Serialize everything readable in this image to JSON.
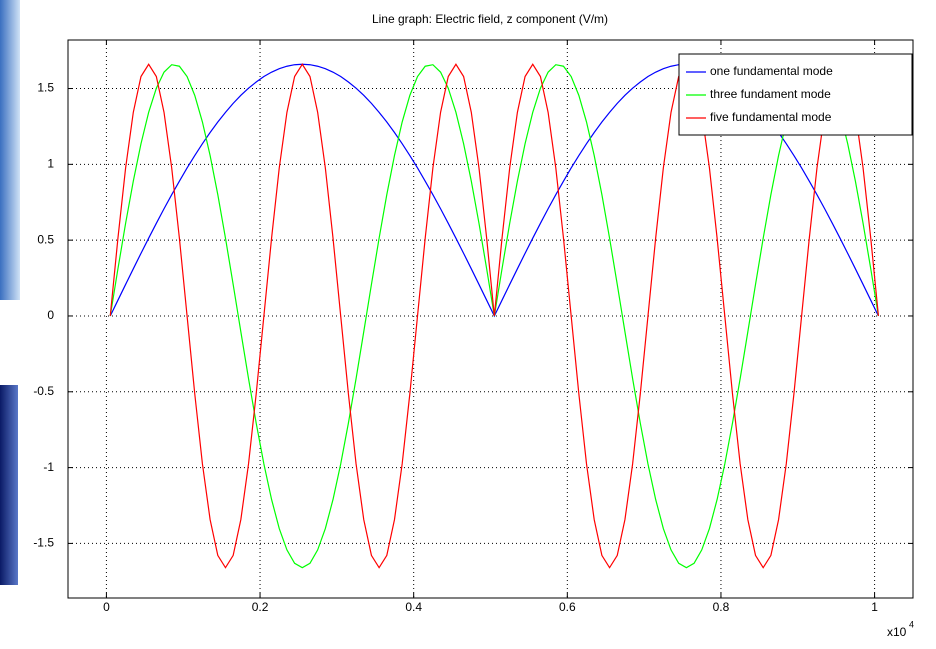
{
  "chart_data": {
    "type": "line",
    "title": "Line graph: Electric field, z component (V/m)",
    "x_multiplier": {
      "base": "x10",
      "exponent": "4"
    },
    "x": [
      0.005,
      0.015,
      0.025,
      0.035,
      0.045,
      0.055,
      0.065,
      0.075,
      0.085,
      0.095,
      0.105,
      0.115,
      0.125,
      0.135,
      0.145,
      0.155,
      0.165,
      0.175,
      0.185,
      0.195,
      0.205,
      0.215,
      0.225,
      0.235,
      0.245,
      0.255,
      0.265,
      0.275,
      0.285,
      0.295,
      0.305,
      0.315,
      0.325,
      0.335,
      0.345,
      0.355,
      0.365,
      0.375,
      0.385,
      0.395,
      0.405,
      0.415,
      0.425,
      0.435,
      0.445,
      0.455,
      0.465,
      0.475,
      0.485,
      0.495,
      0.505,
      0.515,
      0.525,
      0.535,
      0.545,
      0.555,
      0.565,
      0.575,
      0.585,
      0.595,
      0.605,
      0.615,
      0.625,
      0.635,
      0.645,
      0.655,
      0.665,
      0.675,
      0.685,
      0.695,
      0.705,
      0.715,
      0.725,
      0.735,
      0.745,
      0.755,
      0.765,
      0.775,
      0.785,
      0.795,
      0.805,
      0.815,
      0.825,
      0.835,
      0.845,
      0.855,
      0.865,
      0.875,
      0.885,
      0.895,
      0.905,
      0.915,
      0.925,
      0.935,
      0.945,
      0.955,
      0.965,
      0.975,
      0.985,
      0.995,
      1.005
    ],
    "series": [
      {
        "name": "one fundamental mode",
        "color": "#0000ff",
        "values": [
          0,
          0.104,
          0.208,
          0.311,
          0.413,
          0.513,
          0.611,
          0.707,
          0.8,
          0.889,
          0.976,
          1.058,
          1.136,
          1.21,
          1.279,
          1.343,
          1.402,
          1.455,
          1.502,
          1.543,
          1.579,
          1.608,
          1.631,
          1.647,
          1.657,
          1.66,
          1.657,
          1.647,
          1.631,
          1.608,
          1.579,
          1.543,
          1.502,
          1.455,
          1.402,
          1.343,
          1.279,
          1.21,
          1.136,
          1.058,
          0.976,
          0.889,
          0.8,
          0.707,
          0.611,
          0.513,
          0.413,
          0.311,
          0.208,
          0.104,
          0,
          0.104,
          0.208,
          0.311,
          0.413,
          0.513,
          0.611,
          0.707,
          0.8,
          0.889,
          0.976,
          1.058,
          1.136,
          1.21,
          1.279,
          1.343,
          1.402,
          1.455,
          1.502,
          1.543,
          1.579,
          1.608,
          1.631,
          1.647,
          1.657,
          1.66,
          1.657,
          1.647,
          1.631,
          1.608,
          1.579,
          1.543,
          1.502,
          1.455,
          1.402,
          1.343,
          1.279,
          1.21,
          1.136,
          1.058,
          0.976,
          0.889,
          0.8,
          0.707,
          0.611,
          0.513,
          0.413,
          0.311,
          0.208,
          0.104,
          0
        ]
      },
      {
        "name": "three fundament mode",
        "color": "#00ff00",
        "values": [
          0,
          0.311,
          0.611,
          0.889,
          1.136,
          1.343,
          1.502,
          1.608,
          1.657,
          1.647,
          1.579,
          1.455,
          1.279,
          1.058,
          0.8,
          0.513,
          0.208,
          -0.104,
          -0.413,
          -0.707,
          -0.976,
          -1.21,
          -1.402,
          -1.543,
          -1.631,
          -1.66,
          -1.631,
          -1.543,
          -1.402,
          -1.21,
          -0.976,
          -0.707,
          -0.413,
          -0.104,
          0.208,
          0.513,
          0.8,
          1.058,
          1.279,
          1.455,
          1.579,
          1.647,
          1.657,
          1.608,
          1.502,
          1.343,
          1.136,
          0.889,
          0.611,
          0.311,
          0,
          0.311,
          0.611,
          0.889,
          1.136,
          1.343,
          1.502,
          1.608,
          1.657,
          1.647,
          1.579,
          1.455,
          1.279,
          1.058,
          0.8,
          0.513,
          0.208,
          -0.104,
          -0.413,
          -0.707,
          -0.976,
          -1.21,
          -1.402,
          -1.543,
          -1.631,
          -1.66,
          -1.631,
          -1.543,
          -1.402,
          -1.21,
          -0.976,
          -0.707,
          -0.413,
          -0.104,
          0.208,
          0.513,
          0.8,
          1.058,
          1.279,
          1.455,
          1.579,
          1.647,
          1.657,
          1.608,
          1.502,
          1.343,
          1.136,
          0.889,
          0.611,
          0.311,
          0
        ]
      },
      {
        "name": "five fundamental mode",
        "color": "#ff0000",
        "values": [
          0,
          0.513,
          0.976,
          1.343,
          1.579,
          1.66,
          1.579,
          1.343,
          0.976,
          0.513,
          0,
          -0.513,
          -0.976,
          -1.343,
          -1.579,
          -1.66,
          -1.579,
          -1.343,
          -0.976,
          -0.513,
          0,
          0.513,
          0.976,
          1.343,
          1.579,
          1.66,
          1.579,
          1.343,
          0.976,
          0.513,
          0,
          -0.513,
          -0.976,
          -1.343,
          -1.579,
          -1.66,
          -1.579,
          -1.343,
          -0.976,
          -0.513,
          0,
          0.513,
          0.976,
          1.343,
          1.579,
          1.66,
          1.579,
          1.343,
          0.976,
          0.513,
          0,
          0.513,
          0.976,
          1.343,
          1.579,
          1.66,
          1.579,
          1.343,
          0.976,
          0.513,
          0,
          -0.513,
          -0.976,
          -1.343,
          -1.579,
          -1.66,
          -1.579,
          -1.343,
          -0.976,
          -0.513,
          0,
          0.513,
          0.976,
          1.343,
          1.579,
          1.66,
          1.579,
          1.343,
          0.976,
          0.513,
          0,
          -0.513,
          -0.976,
          -1.343,
          -1.579,
          -1.66,
          -1.579,
          -1.343,
          -0.976,
          -0.513,
          0,
          0.513,
          0.976,
          1.343,
          1.579,
          1.66,
          1.579,
          1.343,
          0.976,
          0.513,
          0
        ]
      }
    ],
    "xlim": [
      -0.05,
      1.05
    ],
    "xticks": [
      0,
      0.2,
      0.4,
      0.6,
      0.8,
      1
    ],
    "ylim": [
      -1.86,
      1.82
    ],
    "yticks": [
      -1.5,
      -1,
      -0.5,
      0,
      0.5,
      1,
      1.5
    ],
    "grid": true,
    "legend": "upper-right"
  }
}
